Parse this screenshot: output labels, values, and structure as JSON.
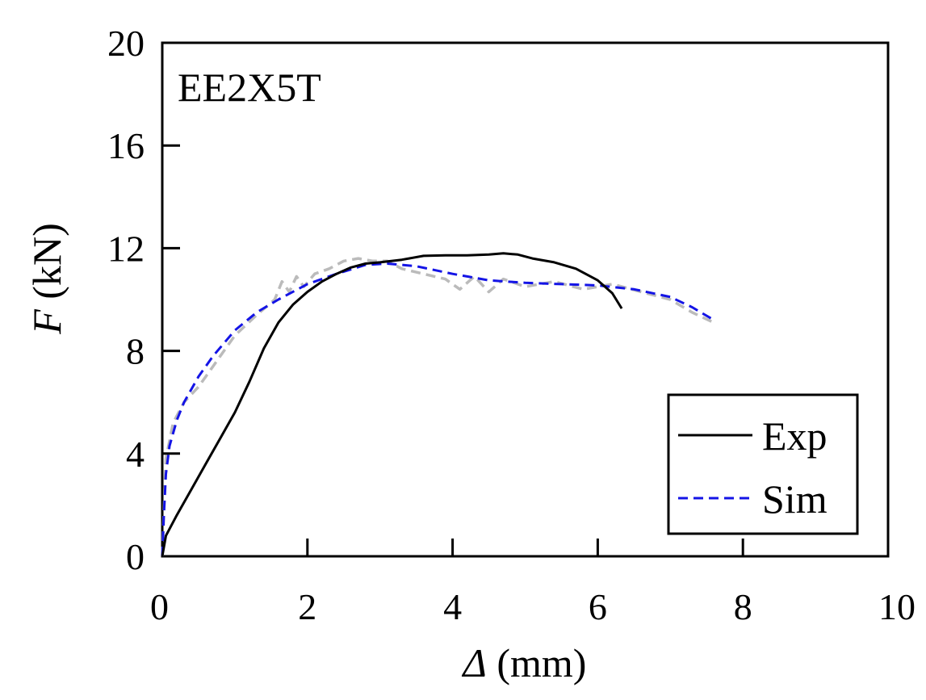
{
  "chart_data": {
    "type": "line",
    "panel_label": "EE2X5T",
    "xlabel": {
      "symbol": "Δ",
      "unit": "(mm)"
    },
    "ylabel": {
      "symbol": "F",
      "unit": "(kN)"
    },
    "xlim": [
      0,
      10
    ],
    "ylim": [
      0,
      20
    ],
    "xticks": [
      0,
      2,
      4,
      6,
      8,
      10
    ],
    "yticks": [
      0,
      4,
      8,
      12,
      16,
      20
    ],
    "xtick_labels": [
      "0",
      "2",
      "4",
      "6",
      "8",
      "10"
    ],
    "ytick_labels": [
      "0",
      "4",
      "8",
      "12",
      "16",
      "20"
    ],
    "grid": false,
    "legend_position": "bottom-right",
    "series": [
      {
        "name": "Exp",
        "color": "#000000",
        "style": "solid",
        "x": [
          0.0,
          0.05,
          0.2,
          0.4,
          0.6,
          0.8,
          1.0,
          1.2,
          1.4,
          1.6,
          1.8,
          2.0,
          2.2,
          2.4,
          2.6,
          2.8,
          3.0,
          3.3,
          3.6,
          3.9,
          4.2,
          4.5,
          4.7,
          4.9,
          5.1,
          5.4,
          5.7,
          6.0,
          6.2,
          6.33
        ],
        "y": [
          0.0,
          0.8,
          1.6,
          2.6,
          3.6,
          4.6,
          5.6,
          6.8,
          8.1,
          9.1,
          9.8,
          10.3,
          10.7,
          11.0,
          11.25,
          11.4,
          11.45,
          11.55,
          11.7,
          11.72,
          11.72,
          11.75,
          11.8,
          11.75,
          11.6,
          11.45,
          11.2,
          10.75,
          10.25,
          9.65
        ]
      },
      {
        "name": "Sim",
        "color": "#1414e6",
        "style": "dashed",
        "x": [
          0.0,
          0.02,
          0.05,
          0.1,
          0.2,
          0.3,
          0.5,
          0.7,
          1.0,
          1.3,
          1.6,
          2.0,
          2.4,
          2.8,
          3.1,
          3.5,
          4.0,
          4.5,
          5.0,
          5.5,
          6.0,
          6.5,
          7.0,
          7.3,
          7.6
        ],
        "y": [
          0.0,
          1.5,
          3.2,
          4.3,
          5.3,
          6.0,
          7.0,
          7.8,
          8.8,
          9.5,
          10.0,
          10.6,
          11.0,
          11.35,
          11.4,
          11.3,
          11.0,
          10.75,
          10.65,
          10.6,
          10.55,
          10.4,
          10.1,
          9.7,
          9.2
        ]
      },
      {
        "color": "#bbbbbb",
        "style": "dashed",
        "x": [
          0.0,
          0.05,
          0.15,
          0.3,
          0.5,
          0.7,
          1.0,
          1.3,
          1.55,
          1.65,
          1.75,
          1.85,
          1.95,
          2.1,
          2.3,
          2.5,
          2.7,
          2.9,
          3.1,
          3.3,
          3.6,
          3.9,
          4.1,
          4.3,
          4.5,
          4.7,
          5.0,
          5.4,
          5.8,
          6.2,
          6.6,
          7.0,
          7.3,
          7.6
        ],
        "y": [
          0.0,
          3.8,
          5.2,
          6.0,
          6.6,
          7.4,
          8.6,
          9.4,
          10.0,
          10.7,
          10.3,
          10.9,
          10.5,
          11.0,
          11.2,
          11.5,
          11.6,
          11.5,
          11.5,
          11.2,
          11.0,
          10.8,
          10.4,
          10.9,
          10.3,
          10.8,
          10.5,
          10.7,
          10.4,
          10.6,
          10.3,
          10.0,
          9.5,
          9.1
        ]
      }
    ]
  }
}
